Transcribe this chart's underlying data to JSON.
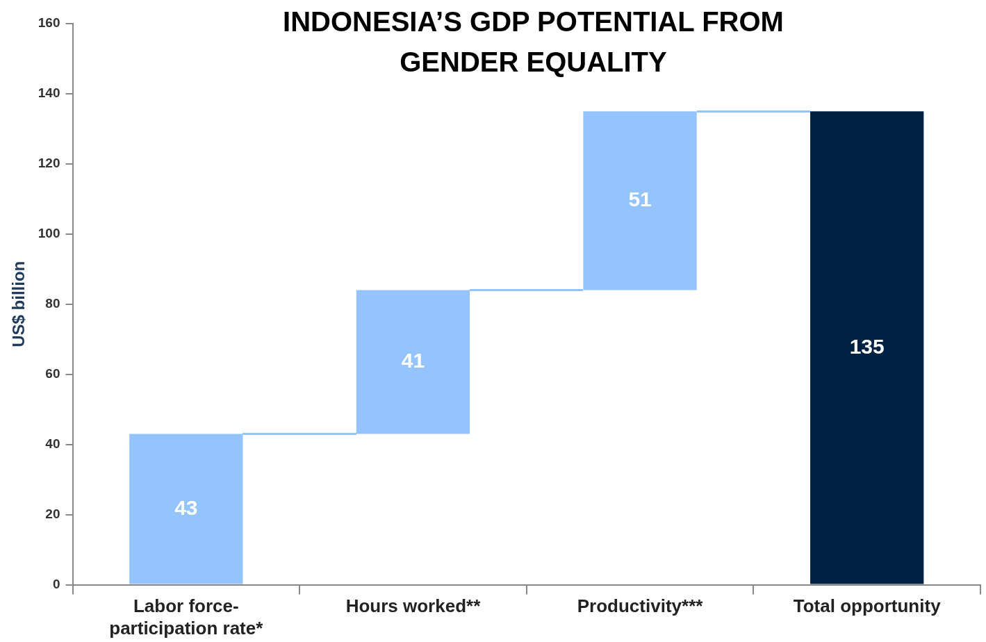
{
  "chart_data": {
    "type": "bar",
    "title": "INDONESIA’S GDP POTENTIAL FROM GENDER EQUALITY",
    "ylabel": "US$ billion",
    "categories": [
      "Labor force-participation rate*",
      "Hours worked**",
      "Productivity***",
      "Total opportunity"
    ],
    "values": [
      43,
      41,
      51,
      135
    ],
    "base": [
      0,
      43,
      84,
      0
    ],
    "colors": [
      "#94c4fb",
      "#94c4fb",
      "#94c4fb",
      "#002142"
    ],
    "ylim": [
      0,
      160
    ],
    "yticks": [
      0,
      20,
      40,
      60,
      80,
      100,
      120,
      140,
      160
    ],
    "grid": false,
    "legend": false,
    "data_labels": true
  }
}
